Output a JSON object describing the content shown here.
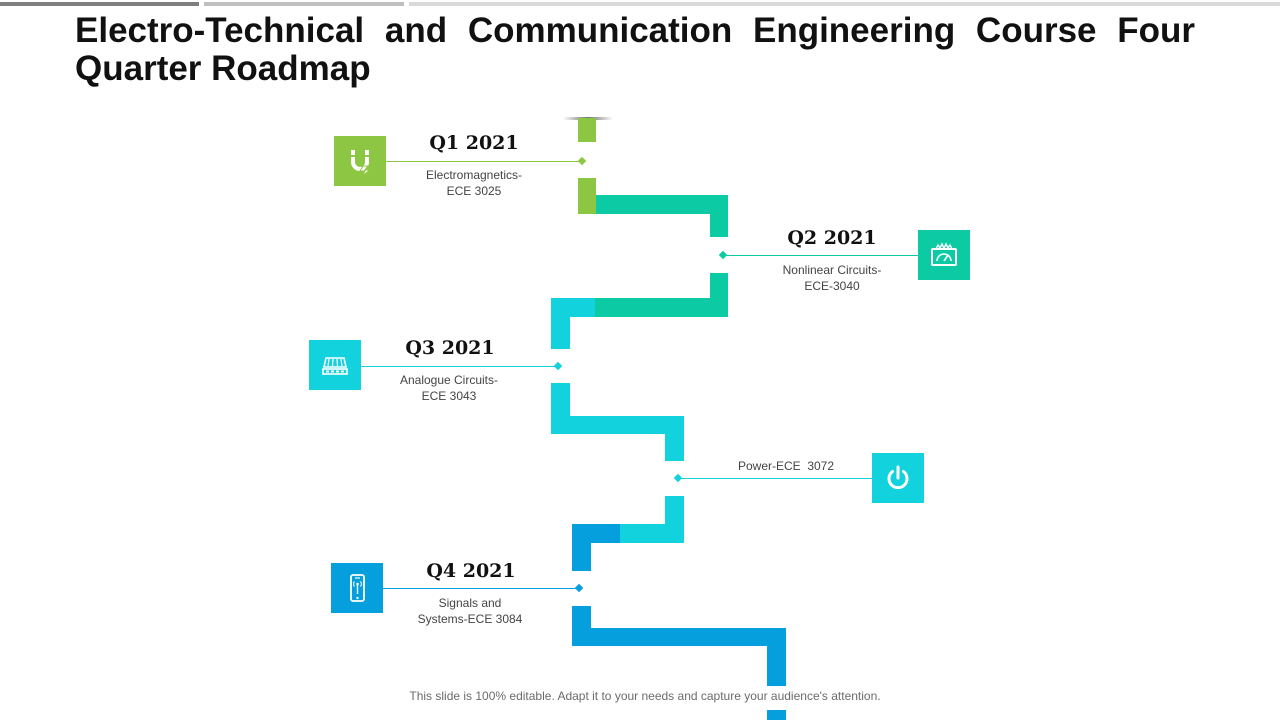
{
  "title": "Electro-Technical and Communication Engineering Course Four Quarter Roadmap",
  "colors": {
    "green": "#8dc642",
    "teal": "#0ccba4",
    "cyan": "#12d2de",
    "blue": "#069fdd"
  },
  "milestones": [
    {
      "quarter": "Q1 2021",
      "course_line1": "Electromagnetics-",
      "course_line2": "ECE 3025",
      "icon": "magnet-icon"
    },
    {
      "quarter": "Q2 2021",
      "course_line1": "Nonlinear Circuits-",
      "course_line2": "ECE-3040",
      "icon": "meter-icon"
    },
    {
      "quarter": "Q3 2021",
      "course_line1": "Analogue Circuits-",
      "course_line2": "ECE 3043",
      "icon": "chip-icon"
    },
    {
      "quarter": "",
      "course_line1": "Power-ECE  3072",
      "course_line2": "",
      "icon": "power-icon"
    },
    {
      "quarter": "Q4 2021",
      "course_line1": "Signals and",
      "course_line2": "Systems-ECE 3084",
      "icon": "phone-signal-icon"
    }
  ],
  "footer": "This slide is 100% editable. Adapt it to your needs and capture your audience's attention."
}
